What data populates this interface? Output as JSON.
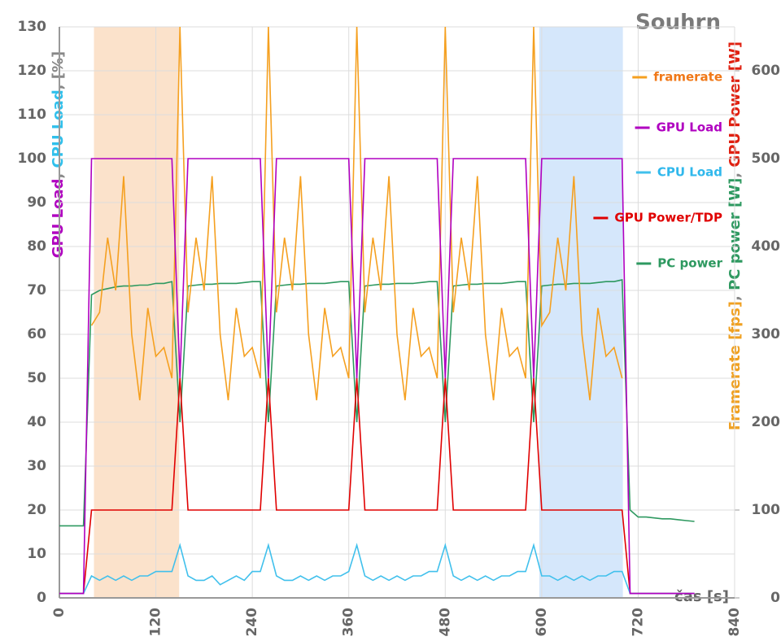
{
  "chart_data": {
    "type": "line",
    "title": "Souhrn",
    "xlabel": "čas [s]",
    "ylabel_parts": [
      {
        "text": "GPU Load",
        "color": "#b000c0"
      },
      {
        "text": ", ",
        "color": "#888888"
      },
      {
        "text": "CPU Load",
        "color": "#30c0ec"
      },
      {
        "text": ", [%]",
        "color": "#888888"
      }
    ],
    "y2label_parts": [
      {
        "text": "Framerate [fps]",
        "color": "#f0a020"
      },
      {
        "text": ", ",
        "color": "#888888"
      },
      {
        "text": "PC power [W]",
        "color": "#2e9960"
      },
      {
        "text": ", ",
        "color": "#888888"
      },
      {
        "text": "GPU Power [W]",
        "color": "#e02010"
      }
    ],
    "xlim": [
      0,
      840
    ],
    "xticks": [
      0,
      120,
      240,
      360,
      480,
      600,
      720,
      840
    ],
    "ylim": [
      0,
      130
    ],
    "yticks": [
      0,
      10,
      20,
      30,
      40,
      50,
      60,
      70,
      80,
      90,
      100,
      110,
      120,
      130
    ],
    "y2lim": [
      0,
      650
    ],
    "y2ticks": [
      0,
      100,
      200,
      300,
      400,
      500,
      600
    ],
    "grid": true,
    "bands": [
      {
        "x": [
          43,
          149
        ],
        "color": "#fbe2cb"
      },
      {
        "x": [
          597,
          701
        ],
        "color": "#d5e7fb"
      }
    ],
    "x": [
      0,
      10,
      20,
      30,
      40,
      50,
      60,
      70,
      80,
      90,
      100,
      110,
      120,
      130,
      140,
      150,
      160,
      170,
      180,
      190,
      200,
      210,
      220,
      230,
      240,
      250,
      260,
      270,
      280,
      290,
      300,
      310,
      320,
      330,
      340,
      350,
      360,
      370,
      380,
      390,
      400,
      410,
      420,
      430,
      440,
      450,
      460,
      470,
      480,
      490,
      500,
      510,
      520,
      530,
      540,
      550,
      560,
      570,
      580,
      590,
      600,
      610,
      620,
      630,
      640,
      650,
      660,
      670,
      680,
      690,
      700,
      710,
      720,
      730,
      740,
      750,
      760,
      770,
      780,
      790
    ],
    "series": [
      {
        "name": "framerate",
        "color": "#f5a020",
        "label_color": "#f07818",
        "values": [
          null,
          null,
          null,
          null,
          62,
          65,
          82,
          70,
          96,
          60,
          45,
          66,
          55,
          57,
          50,
          130,
          65,
          82,
          70,
          96,
          60,
          45,
          66,
          55,
          57,
          50,
          130,
          65,
          82,
          70,
          96,
          60,
          45,
          66,
          55,
          57,
          50,
          130,
          65,
          82,
          70,
          96,
          60,
          45,
          66,
          55,
          57,
          50,
          130,
          65,
          82,
          70,
          96,
          60,
          45,
          66,
          55,
          57,
          50,
          130,
          62,
          65,
          82,
          70,
          96,
          60,
          45,
          66,
          55,
          57,
          50,
          null,
          null,
          null,
          null,
          null,
          null,
          null,
          null,
          null
        ]
      },
      {
        "name": "GPU Load",
        "color": "#b000c0",
        "label_color": "#b000c0",
        "values": [
          1,
          1,
          1,
          1,
          100,
          100,
          100,
          100,
          100,
          100,
          100,
          100,
          100,
          100,
          100,
          50,
          100,
          100,
          100,
          100,
          100,
          100,
          100,
          100,
          100,
          100,
          50,
          100,
          100,
          100,
          100,
          100,
          100,
          100,
          100,
          100,
          100,
          50,
          100,
          100,
          100,
          100,
          100,
          100,
          100,
          100,
          100,
          100,
          50,
          100,
          100,
          100,
          100,
          100,
          100,
          100,
          100,
          100,
          100,
          50,
          100,
          100,
          100,
          100,
          100,
          100,
          100,
          100,
          100,
          100,
          100,
          1,
          1,
          1,
          1,
          1,
          1,
          1,
          1,
          1
        ]
      },
      {
        "name": "CPU Load",
        "color": "#40c0ec",
        "label_color": "#30b8ec",
        "values": [
          1,
          1,
          1,
          1,
          5,
          4,
          5,
          4,
          5,
          4,
          5,
          5,
          6,
          6,
          6,
          12,
          5,
          4,
          4,
          5,
          3,
          4,
          5,
          4,
          6,
          6,
          12,
          5,
          4,
          4,
          5,
          4,
          5,
          4,
          5,
          5,
          6,
          12,
          5,
          4,
          5,
          4,
          5,
          4,
          5,
          5,
          6,
          6,
          12,
          5,
          4,
          5,
          4,
          5,
          4,
          5,
          5,
          6,
          6,
          12,
          5,
          5,
          4,
          5,
          4,
          5,
          4,
          5,
          5,
          6,
          6,
          1,
          1,
          1,
          1,
          1,
          1,
          1,
          1,
          1
        ]
      },
      {
        "name": "GPU Power/TDP",
        "color": "#e00000",
        "label_color": "#e00000",
        "values": [
          1,
          1,
          1,
          1,
          20,
          20,
          20,
          20,
          20,
          20,
          20,
          20,
          20,
          20,
          20,
          50,
          20,
          20,
          20,
          20,
          20,
          20,
          20,
          20,
          20,
          20,
          50,
          20,
          20,
          20,
          20,
          20,
          20,
          20,
          20,
          20,
          20,
          50,
          20,
          20,
          20,
          20,
          20,
          20,
          20,
          20,
          20,
          20,
          50,
          20,
          20,
          20,
          20,
          20,
          20,
          20,
          20,
          20,
          20,
          50,
          20,
          20,
          20,
          20,
          20,
          20,
          20,
          20,
          20,
          20,
          20,
          1,
          1,
          1,
          1,
          1,
          1,
          1,
          1,
          1
        ]
      },
      {
        "name": "PC power",
        "color": "#2e9960",
        "label_color": "#2e9960",
        "axis": "y2",
        "values": [
          82,
          82,
          82,
          82,
          345,
          350,
          352,
          354,
          355,
          355,
          356,
          356,
          358,
          358,
          360,
          200,
          355,
          356,
          357,
          357,
          358,
          358,
          358,
          359,
          360,
          360,
          200,
          355,
          356,
          357,
          357,
          358,
          358,
          358,
          359,
          360,
          360,
          200,
          355,
          356,
          357,
          357,
          358,
          358,
          358,
          359,
          360,
          360,
          200,
          355,
          356,
          357,
          357,
          358,
          358,
          358,
          359,
          360,
          360,
          200,
          355,
          356,
          357,
          357,
          358,
          358,
          358,
          359,
          360,
          360,
          362,
          100,
          92,
          92,
          91,
          90,
          90,
          89,
          88,
          87
        ]
      }
    ]
  }
}
